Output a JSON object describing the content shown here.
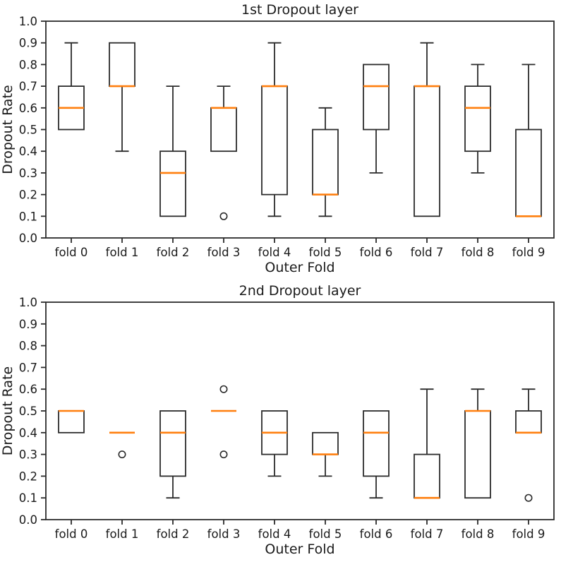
{
  "figure": {
    "background": "#ffffff",
    "line_color": "#2b2b2b",
    "text_color": "#1a1a1a",
    "median_color": "#ff7f0e"
  },
  "chart_data": [
    {
      "type": "boxplot",
      "title": "1st Dropout layer",
      "xlabel": "Outer Fold",
      "ylabel": "Dropout Rate",
      "ylim": [
        0.0,
        1.0
      ],
      "yticks": [
        0.0,
        0.1,
        0.2,
        0.3,
        0.4,
        0.5,
        0.6,
        0.7,
        0.8,
        0.9,
        1.0
      ],
      "grid": false,
      "legend": "none",
      "categories": [
        "fold 0",
        "fold 1",
        "fold 2",
        "fold 3",
        "fold 4",
        "fold 5",
        "fold 6",
        "fold 7",
        "fold 8",
        "fold 9"
      ],
      "boxes": [
        {
          "whislo": 0.5,
          "q1": 0.5,
          "med": 0.6,
          "q3": 0.7,
          "whishi": 0.9,
          "fliers": []
        },
        {
          "whislo": 0.4,
          "q1": 0.7,
          "med": 0.7,
          "q3": 0.9,
          "whishi": 0.9,
          "fliers": []
        },
        {
          "whislo": 0.1,
          "q1": 0.1,
          "med": 0.3,
          "q3": 0.4,
          "whishi": 0.7,
          "fliers": []
        },
        {
          "whislo": 0.4,
          "q1": 0.4,
          "med": 0.6,
          "q3": 0.6,
          "whishi": 0.7,
          "fliers": [
            0.1
          ]
        },
        {
          "whislo": 0.1,
          "q1": 0.2,
          "med": 0.7,
          "q3": 0.7,
          "whishi": 0.9,
          "fliers": []
        },
        {
          "whislo": 0.1,
          "q1": 0.2,
          "med": 0.2,
          "q3": 0.5,
          "whishi": 0.6,
          "fliers": []
        },
        {
          "whislo": 0.3,
          "q1": 0.5,
          "med": 0.7,
          "q3": 0.8,
          "whishi": 0.8,
          "fliers": []
        },
        {
          "whislo": 0.1,
          "q1": 0.1,
          "med": 0.7,
          "q3": 0.7,
          "whishi": 0.9,
          "fliers": []
        },
        {
          "whislo": 0.3,
          "q1": 0.4,
          "med": 0.6,
          "q3": 0.7,
          "whishi": 0.8,
          "fliers": []
        },
        {
          "whislo": 0.1,
          "q1": 0.1,
          "med": 0.1,
          "q3": 0.5,
          "whishi": 0.8,
          "fliers": []
        }
      ]
    },
    {
      "type": "boxplot",
      "title": "2nd Dropout layer",
      "xlabel": "Outer Fold",
      "ylabel": "Dropout Rate",
      "ylim": [
        0.0,
        1.0
      ],
      "yticks": [
        0.0,
        0.1,
        0.2,
        0.3,
        0.4,
        0.5,
        0.6,
        0.7,
        0.8,
        0.9,
        1.0
      ],
      "grid": false,
      "legend": "none",
      "categories": [
        "fold 0",
        "fold 1",
        "fold 2",
        "fold 3",
        "fold 4",
        "fold 5",
        "fold 6",
        "fold 7",
        "fold 8",
        "fold 9"
      ],
      "boxes": [
        {
          "whislo": 0.4,
          "q1": 0.4,
          "med": 0.5,
          "q3": 0.5,
          "whishi": 0.5,
          "fliers": []
        },
        {
          "whislo": 0.4,
          "q1": 0.4,
          "med": 0.4,
          "q3": 0.4,
          "whishi": 0.4,
          "fliers": [
            0.3
          ]
        },
        {
          "whislo": 0.1,
          "q1": 0.2,
          "med": 0.4,
          "q3": 0.5,
          "whishi": 0.5,
          "fliers": []
        },
        {
          "whislo": 0.5,
          "q1": 0.5,
          "med": 0.5,
          "q3": 0.5,
          "whishi": 0.5,
          "fliers": [
            0.6,
            0.3
          ]
        },
        {
          "whislo": 0.2,
          "q1": 0.3,
          "med": 0.4,
          "q3": 0.5,
          "whishi": 0.5,
          "fliers": []
        },
        {
          "whislo": 0.2,
          "q1": 0.3,
          "med": 0.3,
          "q3": 0.4,
          "whishi": 0.4,
          "fliers": []
        },
        {
          "whislo": 0.1,
          "q1": 0.2,
          "med": 0.4,
          "q3": 0.5,
          "whishi": 0.5,
          "fliers": []
        },
        {
          "whislo": 0.1,
          "q1": 0.1,
          "med": 0.1,
          "q3": 0.3,
          "whishi": 0.6,
          "fliers": []
        },
        {
          "whislo": 0.1,
          "q1": 0.1,
          "med": 0.5,
          "q3": 0.5,
          "whishi": 0.6,
          "fliers": []
        },
        {
          "whislo": 0.4,
          "q1": 0.4,
          "med": 0.4,
          "q3": 0.5,
          "whishi": 0.6,
          "fliers": [
            0.1
          ]
        }
      ]
    }
  ]
}
